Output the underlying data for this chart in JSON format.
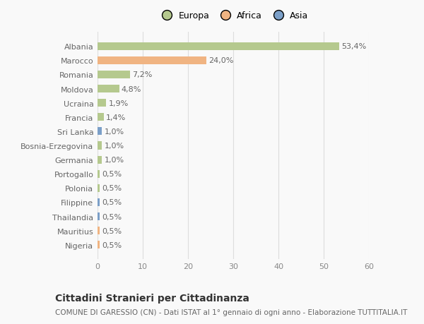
{
  "countries": [
    "Albania",
    "Marocco",
    "Romania",
    "Moldova",
    "Ucraina",
    "Francia",
    "Sri Lanka",
    "Bosnia-Erzegovina",
    "Germania",
    "Portogallo",
    "Polonia",
    "Filippine",
    "Thailandia",
    "Mauritius",
    "Nigeria"
  ],
  "values": [
    53.4,
    24.0,
    7.2,
    4.8,
    1.9,
    1.4,
    1.0,
    1.0,
    1.0,
    0.5,
    0.5,
    0.5,
    0.5,
    0.5,
    0.5
  ],
  "labels": [
    "53,4%",
    "24,0%",
    "7,2%",
    "4,8%",
    "1,9%",
    "1,4%",
    "1,0%",
    "1,0%",
    "1,0%",
    "0,5%",
    "0,5%",
    "0,5%",
    "0,5%",
    "0,5%",
    "0,5%"
  ],
  "continent": [
    "Europa",
    "Africa",
    "Europa",
    "Europa",
    "Europa",
    "Europa",
    "Asia",
    "Europa",
    "Europa",
    "Europa",
    "Europa",
    "Asia",
    "Asia",
    "Africa",
    "Africa"
  ],
  "colors": {
    "Europa": "#b5c98e",
    "Africa": "#f0b482",
    "Asia": "#7b9fc8"
  },
  "title": "Cittadini Stranieri per Cittadinanza",
  "subtitle": "COMUNE DI GARESSIO (CN) - Dati ISTAT al 1° gennaio di ogni anno - Elaborazione TUTTITALIA.IT",
  "xlim": [
    0,
    60
  ],
  "xticks": [
    0,
    10,
    20,
    30,
    40,
    50,
    60
  ],
  "background_color": "#f9f9f9",
  "grid_color": "#dddddd",
  "bar_height": 0.55,
  "title_fontsize": 10,
  "subtitle_fontsize": 7.5,
  "tick_fontsize": 8,
  "label_fontsize": 8,
  "legend_fontsize": 9
}
